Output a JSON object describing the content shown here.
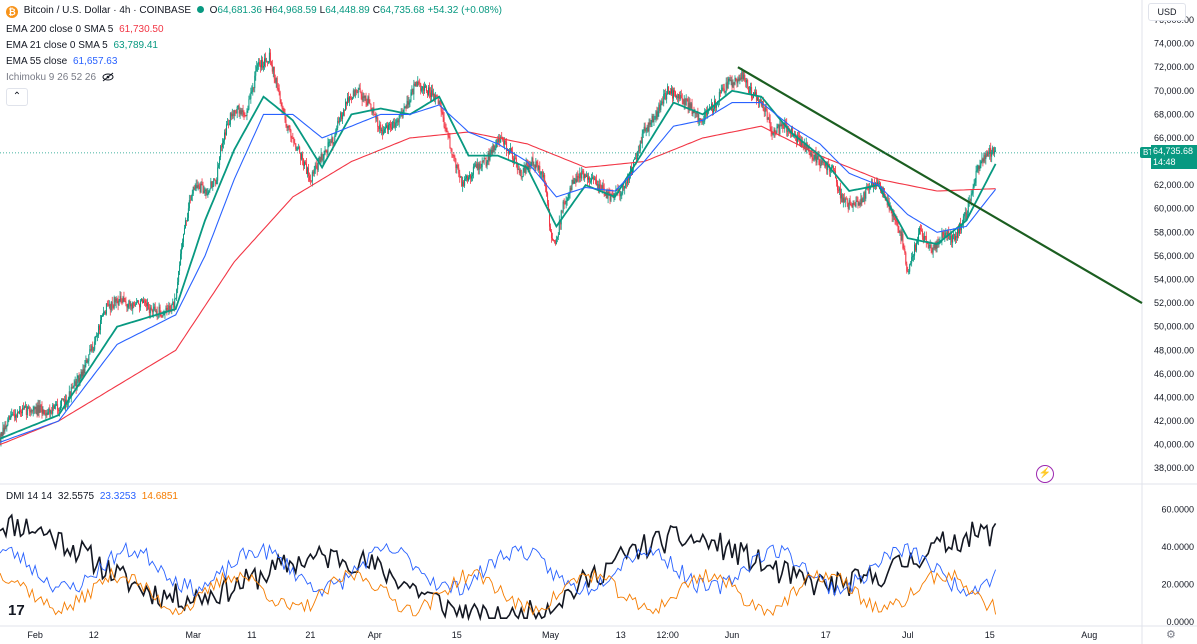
{
  "header": {
    "symbol_title": "Bitcoin / U.S. Dollar · 4h · COINBASE",
    "ohlc": [
      {
        "k": "O",
        "v": "64,681.36"
      },
      {
        "k": "H",
        "v": "64,968.59"
      },
      {
        "k": "L",
        "v": "64,448.89"
      },
      {
        "k": "C",
        "v": "64,735.68"
      },
      {
        "k": "",
        "v": "+54.32 (+0.08%)"
      }
    ],
    "currency": "USD",
    "btc_symbol": "₿"
  },
  "indicators": [
    {
      "label": "EMA 200 close 0 SMA 5",
      "value": "61,730.50",
      "color": "#f23645"
    },
    {
      "label": "EMA 21 close 0 SMA 5",
      "value": "63,789.41",
      "color": "#089981"
    },
    {
      "label": "EMA 55 close",
      "value": "61,657.63",
      "color": "#2962ff"
    },
    {
      "label": "Ichimoku 9 26 52 26",
      "value": "",
      "color": "#787b86"
    }
  ],
  "dmi_legend": {
    "label": "DMI 14 14",
    "adx": "32.5575",
    "plus_di": "23.3253",
    "minus_di": "14.6851"
  },
  "price_tag": {
    "symbol": "BTCUSD",
    "last": "64,735.68",
    "countdown": "14:48"
  },
  "logo_text": "17",
  "colors": {
    "up": "#089981",
    "down": "#f23645",
    "ema21": "#089981",
    "ema55": "#2962ff",
    "ema200": "#f23645",
    "trendline": "#1b5e20",
    "adx": "#131722",
    "plus_di": "#2962ff",
    "minus_di": "#f57c00"
  },
  "chart_data": [
    {
      "type": "candlestick",
      "title": "Bitcoin / U.S. Dollar · 4h · COINBASE",
      "ylim": [
        37000,
        76000
      ],
      "y_ticks": [
        "38,000.00",
        "40,000.00",
        "42,000.00",
        "44,000.00",
        "46,000.00",
        "48,000.00",
        "50,000.00",
        "52,000.00",
        "54,000.00",
        "56,000.00",
        "58,000.00",
        "60,000.00",
        "62,000.00",
        "64,000.00",
        "66,000.00",
        "68,000.00",
        "70,000.00",
        "72,000.00",
        "74,000.00",
        "76,000.00"
      ],
      "x_ticks": [
        {
          "label": "Feb",
          "day": 6
        },
        {
          "label": "12",
          "day": 16
        },
        {
          "label": "Mar",
          "day": 33
        },
        {
          "label": "11",
          "day": 43
        },
        {
          "label": "21",
          "day": 53
        },
        {
          "label": "Apr",
          "day": 64
        },
        {
          "label": "15",
          "day": 78
        },
        {
          "label": "May",
          "day": 94
        },
        {
          "label": "13",
          "day": 106
        },
        {
          "label": "12:00",
          "day": 114
        },
        {
          "label": "Jun",
          "day": 125
        },
        {
          "label": "17",
          "day": 141
        },
        {
          "label": "Jul",
          "day": 155
        },
        {
          "label": "15",
          "day": 169
        },
        {
          "label": "Aug",
          "day": 186
        }
      ],
      "x_range_days": [
        0,
        195
      ],
      "price_path": [
        [
          0,
          40500
        ],
        [
          2,
          42500
        ],
        [
          5,
          43000
        ],
        [
          8,
          42800
        ],
        [
          11,
          43500
        ],
        [
          14,
          46000
        ],
        [
          16,
          48500
        ],
        [
          18,
          51500
        ],
        [
          20,
          52300
        ],
        [
          22,
          51800
        ],
        [
          24,
          52000
        ],
        [
          26,
          51300
        ],
        [
          28,
          51200
        ],
        [
          30,
          52000
        ],
        [
          31,
          57000
        ],
        [
          33,
          62000
        ],
        [
          35,
          61500
        ],
        [
          37,
          62500
        ],
        [
          38,
          66000
        ],
        [
          40,
          68500
        ],
        [
          42,
          68000
        ],
        [
          44,
          72000
        ],
        [
          46,
          73000
        ],
        [
          47,
          71000
        ],
        [
          49,
          67000
        ],
        [
          51,
          65000
        ],
        [
          53,
          62500
        ],
        [
          55,
          64500
        ],
        [
          57,
          66000
        ],
        [
          59,
          69000
        ],
        [
          61,
          70000
        ],
        [
          63,
          69000
        ],
        [
          65,
          66500
        ],
        [
          67,
          67000
        ],
        [
          69,
          68500
        ],
        [
          71,
          70500
        ],
        [
          73,
          70000
        ],
        [
          75,
          69000
        ],
        [
          77,
          65000
        ],
        [
          79,
          62000
        ],
        [
          81,
          63500
        ],
        [
          83,
          64000
        ],
        [
          85,
          66000
        ],
        [
          87,
          65000
        ],
        [
          89,
          63000
        ],
        [
          91,
          64000
        ],
        [
          93,
          62500
        ],
        [
          94,
          58000
        ],
        [
          95,
          57000
        ],
        [
          96,
          60000
        ],
        [
          98,
          62500
        ],
        [
          100,
          63000
        ],
        [
          102,
          62000
        ],
        [
          104,
          61000
        ],
        [
          106,
          61500
        ],
        [
          108,
          63500
        ],
        [
          110,
          66500
        ],
        [
          112,
          68000
        ],
        [
          114,
          70000
        ],
        [
          116,
          69500
        ],
        [
          118,
          68500
        ],
        [
          120,
          67500
        ],
        [
          122,
          68800
        ],
        [
          124,
          70500
        ],
        [
          126,
          71000
        ],
        [
          127,
          71500
        ],
        [
          128,
          70000
        ],
        [
          130,
          69000
        ],
        [
          132,
          66500
        ],
        [
          134,
          67000
        ],
        [
          136,
          66000
        ],
        [
          138,
          65000
        ],
        [
          140,
          64000
        ],
        [
          142,
          63500
        ],
        [
          144,
          60500
        ],
        [
          146,
          60200
        ],
        [
          148,
          61500
        ],
        [
          150,
          62500
        ],
        [
          152,
          60000
        ],
        [
          154,
          57500
        ],
        [
          155,
          54500
        ],
        [
          157,
          58000
        ],
        [
          159,
          56500
        ],
        [
          161,
          57800
        ],
        [
          163,
          57500
        ],
        [
          165,
          59500
        ],
        [
          167,
          63500
        ],
        [
          169,
          64800
        ],
        [
          170,
          64700
        ]
      ],
      "series": [
        {
          "name": "EMA 200 close 0 SMA 5",
          "color": "#f23645",
          "values": [
            [
              0,
              40000
            ],
            [
              10,
              42000
            ],
            [
              20,
              45000
            ],
            [
              30,
              48000
            ],
            [
              40,
              55500
            ],
            [
              50,
              61000
            ],
            [
              60,
              64000
            ],
            [
              70,
              66000
            ],
            [
              80,
              66500
            ],
            [
              90,
              65500
            ],
            [
              100,
              63500
            ],
            [
              110,
              64000
            ],
            [
              120,
              66000
            ],
            [
              130,
              67000
            ],
            [
              140,
              64500
            ],
            [
              150,
              62500
            ],
            [
              160,
              61500
            ],
            [
              170,
              61700
            ]
          ]
        },
        {
          "name": "EMA 21 close 0 SMA 5",
          "color": "#089981",
          "values": [
            [
              0,
              40500
            ],
            [
              10,
              42500
            ],
            [
              20,
              50000
            ],
            [
              30,
              51500
            ],
            [
              35,
              59000
            ],
            [
              40,
              65000
            ],
            [
              45,
              69500
            ],
            [
              50,
              67500
            ],
            [
              55,
              63500
            ],
            [
              60,
              68000
            ],
            [
              65,
              68500
            ],
            [
              70,
              68000
            ],
            [
              75,
              69500
            ],
            [
              80,
              64500
            ],
            [
              85,
              64500
            ],
            [
              90,
              63500
            ],
            [
              95,
              58500
            ],
            [
              100,
              62000
            ],
            [
              105,
              61000
            ],
            [
              110,
              65000
            ],
            [
              115,
              69000
            ],
            [
              120,
              68000
            ],
            [
              125,
              70000
            ],
            [
              130,
              69500
            ],
            [
              135,
              66500
            ],
            [
              140,
              64500
            ],
            [
              145,
              61500
            ],
            [
              150,
              62000
            ],
            [
              155,
              57500
            ],
            [
              160,
              57000
            ],
            [
              165,
              59000
            ],
            [
              170,
              63800
            ]
          ]
        },
        {
          "name": "EMA 55 close",
          "color": "#2962ff",
          "values": [
            [
              0,
              40200
            ],
            [
              10,
              42000
            ],
            [
              20,
              48500
            ],
            [
              30,
              51000
            ],
            [
              35,
              56000
            ],
            [
              40,
              62500
            ],
            [
              45,
              68000
            ],
            [
              50,
              68000
            ],
            [
              55,
              66000
            ],
            [
              60,
              67000
            ],
            [
              65,
              68000
            ],
            [
              70,
              68000
            ],
            [
              75,
              68800
            ],
            [
              80,
              66500
            ],
            [
              85,
              65500
            ],
            [
              90,
              64000
            ],
            [
              95,
              61000
            ],
            [
              100,
              61800
            ],
            [
              105,
              61500
            ],
            [
              110,
              64000
            ],
            [
              115,
              67000
            ],
            [
              120,
              67500
            ],
            [
              125,
              69000
            ],
            [
              130,
              69000
            ],
            [
              135,
              67000
            ],
            [
              140,
              65500
            ],
            [
              145,
              63000
            ],
            [
              150,
              62000
            ],
            [
              155,
              59500
            ],
            [
              160,
              58000
            ],
            [
              165,
              58500
            ],
            [
              170,
              61650
            ]
          ]
        },
        {
          "name": "Trendline",
          "color": "#1b5e20",
          "values": [
            [
              126,
              72000
            ],
            [
              195,
              52000
            ]
          ]
        }
      ]
    },
    {
      "type": "line",
      "title": "DMI 14 14",
      "ylim": [
        0,
        65
      ],
      "y_ticks": [
        "0.0000",
        "20.0000",
        "40.0000",
        "60.0000"
      ],
      "series": [
        {
          "name": "ADX",
          "color": "#131722",
          "seed": 11,
          "base": 26,
          "amp": 16,
          "period": 9
        },
        {
          "name": "+DI",
          "color": "#2962ff",
          "seed": 23,
          "base": 28,
          "amp": 10,
          "period": 3.5
        },
        {
          "name": "-DI",
          "color": "#f57c00",
          "seed": 37,
          "base": 16,
          "amp": 9,
          "period": 3.2
        }
      ]
    }
  ]
}
